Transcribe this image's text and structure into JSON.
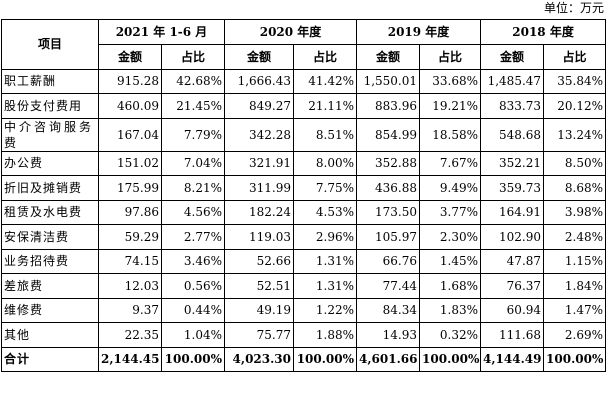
{
  "unit_label": "单位：万元",
  "header": {
    "item": "项目",
    "periods": [
      "2021 年 1-6 月",
      "2020 年度",
      "2019 年度",
      "2018 年度"
    ],
    "amount": "金额",
    "ratio": "占比"
  },
  "rows": [
    {
      "name": "职工薪酬",
      "v": [
        "915.28",
        "42.68%",
        "1,666.43",
        "41.42%",
        "1,550.01",
        "33.68%",
        "1,485.47",
        "35.84%"
      ]
    },
    {
      "name": "股份支付费用",
      "v": [
        "460.09",
        "21.45%",
        "849.27",
        "21.11%",
        "883.96",
        "19.21%",
        "833.73",
        "20.12%"
      ]
    },
    {
      "name": "中介咨询服务费",
      "v": [
        "167.04",
        "7.79%",
        "342.28",
        "8.51%",
        "854.99",
        "18.58%",
        "548.68",
        "13.24%"
      ]
    },
    {
      "name": "办公费",
      "v": [
        "151.02",
        "7.04%",
        "321.91",
        "8.00%",
        "352.88",
        "7.67%",
        "352.21",
        "8.50%"
      ]
    },
    {
      "name": "折旧及摊销费",
      "v": [
        "175.99",
        "8.21%",
        "311.99",
        "7.75%",
        "436.88",
        "9.49%",
        "359.73",
        "8.68%"
      ]
    },
    {
      "name": "租赁及水电费",
      "v": [
        "97.86",
        "4.56%",
        "182.24",
        "4.53%",
        "173.50",
        "3.77%",
        "164.91",
        "3.98%"
      ]
    },
    {
      "name": "安保清洁费",
      "v": [
        "59.29",
        "2.77%",
        "119.03",
        "2.96%",
        "105.97",
        "2.30%",
        "102.90",
        "2.48%"
      ]
    },
    {
      "name": "业务招待费",
      "v": [
        "74.15",
        "3.46%",
        "52.66",
        "1.31%",
        "66.76",
        "1.45%",
        "47.87",
        "1.15%"
      ]
    },
    {
      "name": "差旅费",
      "v": [
        "12.03",
        "0.56%",
        "52.51",
        "1.31%",
        "77.44",
        "1.68%",
        "76.37",
        "1.84%"
      ]
    },
    {
      "name": "维修费",
      "v": [
        "9.37",
        "0.44%",
        "49.19",
        "1.22%",
        "84.34",
        "1.83%",
        "60.94",
        "1.47%"
      ]
    },
    {
      "name": "其他",
      "v": [
        "22.35",
        "1.04%",
        "75.77",
        "1.88%",
        "14.93",
        "0.32%",
        "111.68",
        "2.69%"
      ]
    }
  ],
  "total": {
    "name": "合计",
    "v": [
      "2,144.45",
      "100.00%",
      "4,023.30",
      "100.00%",
      "4,601.66",
      "100.00%",
      "4,144.49",
      "100.00%"
    ]
  }
}
